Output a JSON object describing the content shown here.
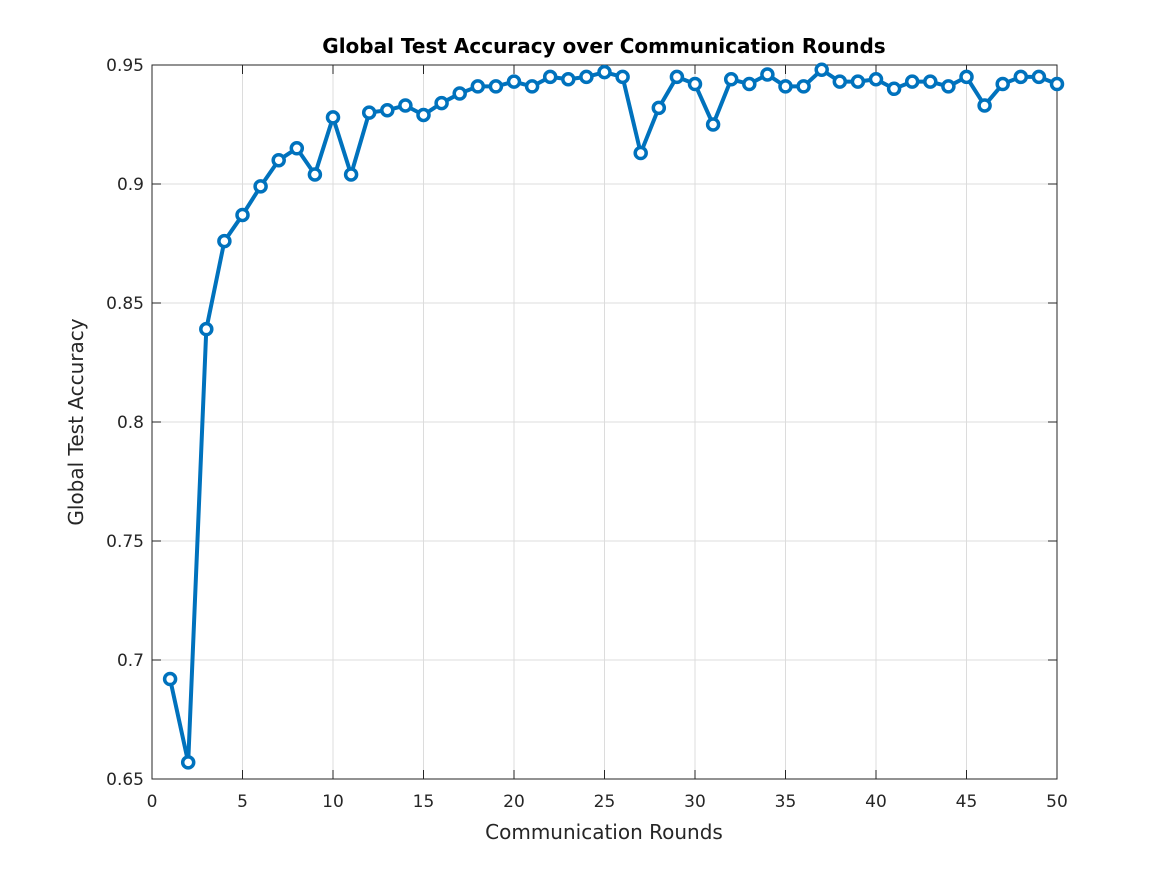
{
  "chart_data": {
    "type": "line",
    "title": "Global Test Accuracy over Communication Rounds",
    "xlabel": "Communication Rounds",
    "ylabel": "Global Test Accuracy",
    "xlim": [
      0,
      50
    ],
    "ylim": [
      0.65,
      0.95
    ],
    "xticks": [
      0,
      5,
      10,
      15,
      20,
      25,
      30,
      35,
      40,
      45,
      50
    ],
    "xtick_labels": [
      "0",
      "5",
      "10",
      "15",
      "20",
      "25",
      "30",
      "35",
      "40",
      "45",
      "50"
    ],
    "yticks": [
      0.65,
      0.7,
      0.75,
      0.8,
      0.85,
      0.9,
      0.95
    ],
    "ytick_labels": [
      "0.65",
      "0.7",
      "0.75",
      "0.8",
      "0.85",
      "0.9",
      "0.95"
    ],
    "grid": true,
    "series": [
      {
        "color": "#0072BD",
        "marker": "circle",
        "x": [
          1,
          2,
          3,
          4,
          5,
          6,
          7,
          8,
          9,
          10,
          11,
          12,
          13,
          14,
          15,
          16,
          17,
          18,
          19,
          20,
          21,
          22,
          23,
          24,
          25,
          26,
          27,
          28,
          29,
          30,
          31,
          32,
          33,
          34,
          35,
          36,
          37,
          38,
          39,
          40,
          41,
          42,
          43,
          44,
          45,
          46,
          47,
          48,
          49,
          50
        ],
        "values": [
          0.692,
          0.657,
          0.839,
          0.876,
          0.887,
          0.899,
          0.91,
          0.915,
          0.904,
          0.928,
          0.904,
          0.93,
          0.931,
          0.933,
          0.929,
          0.934,
          0.938,
          0.941,
          0.941,
          0.943,
          0.941,
          0.945,
          0.944,
          0.945,
          0.947,
          0.945,
          0.913,
          0.932,
          0.945,
          0.942,
          0.925,
          0.944,
          0.942,
          0.946,
          0.941,
          0.941,
          0.948,
          0.943,
          0.943,
          0.944,
          0.94,
          0.943,
          0.943,
          0.941,
          0.945,
          0.933,
          0.942,
          0.945,
          0.945,
          0.942
        ]
      }
    ]
  }
}
